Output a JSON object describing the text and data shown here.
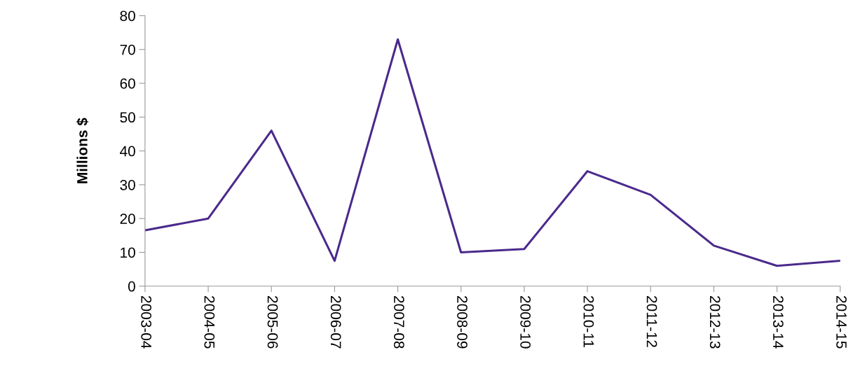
{
  "chart_data": {
    "type": "line",
    "ylabel": "Millions $",
    "categories": [
      "2003-04",
      "2004-05",
      "2005-06",
      "2006-07",
      "2007-08",
      "2008-09",
      "2009-10",
      "2010-11",
      "2011-12",
      "2012-13",
      "2013-14",
      "2014-15"
    ],
    "series": [
      {
        "color": "#4b2a8c",
        "values": [
          16.5,
          20,
          46,
          7.5,
          73,
          10,
          11,
          34,
          27,
          12,
          6,
          7.5
        ]
      }
    ],
    "ylim": [
      0,
      80
    ],
    "yticks": [
      0,
      10,
      20,
      30,
      40,
      50,
      60,
      70,
      80
    ],
    "grid": false,
    "legend": false,
    "marker": "none",
    "line_style": "solid"
  }
}
